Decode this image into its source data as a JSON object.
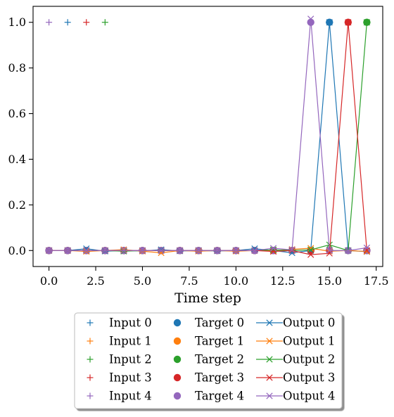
{
  "chart_data": {
    "type": "line",
    "xlabel": "Time step",
    "ylabel": "",
    "title": "",
    "xlim": [
      -0.85,
      17.85
    ],
    "ylim": [
      -0.07,
      1.07
    ],
    "xticks": [
      0,
      2.5,
      5,
      7.5,
      10,
      12.5,
      15,
      17.5
    ],
    "xtick_labels": [
      "0.0",
      "2.5",
      "5.0",
      "7.5",
      "10.0",
      "12.5",
      "15.0",
      "17.5"
    ],
    "yticks": [
      0,
      0.2,
      0.4,
      0.6,
      0.8,
      1.0
    ],
    "ytick_labels": [
      "0.0",
      "0.2",
      "0.4",
      "0.6",
      "0.8",
      "1.0"
    ],
    "grid": false,
    "legend_placement": "below",
    "legend_columns": 3,
    "x": [
      0,
      1,
      2,
      3,
      4,
      5,
      6,
      7,
      8,
      9,
      10,
      11,
      12,
      13,
      14,
      15,
      16,
      17
    ],
    "series": [
      {
        "name": "Input 0",
        "kind": "input",
        "color": "#1f77b4",
        "points": [
          [
            1,
            1.0
          ]
        ]
      },
      {
        "name": "Input 1",
        "kind": "input",
        "color": "#ff7f0e",
        "points": []
      },
      {
        "name": "Input 2",
        "kind": "input",
        "color": "#2ca02c",
        "points": [
          [
            3,
            1.0
          ]
        ]
      },
      {
        "name": "Input 3",
        "kind": "input",
        "color": "#d62728",
        "points": [
          [
            2,
            1.0
          ]
        ]
      },
      {
        "name": "Input 4",
        "kind": "input",
        "color": "#9467bd",
        "points": [
          [
            0,
            1.0
          ]
        ]
      },
      {
        "name": "Target 0",
        "kind": "target",
        "color": "#1f77b4",
        "values": [
          0,
          0,
          0,
          0,
          0,
          0,
          0,
          0,
          0,
          0,
          0,
          0,
          0,
          0,
          0,
          1,
          0,
          0
        ]
      },
      {
        "name": "Target 1",
        "kind": "target",
        "color": "#ff7f0e",
        "values": [
          0,
          0,
          0,
          0,
          0,
          0,
          0,
          0,
          0,
          0,
          0,
          0,
          0,
          0,
          0,
          0,
          0,
          0
        ]
      },
      {
        "name": "Target 2",
        "kind": "target",
        "color": "#2ca02c",
        "values": [
          0,
          0,
          0,
          0,
          0,
          0,
          0,
          0,
          0,
          0,
          0,
          0,
          0,
          0,
          0,
          0,
          0,
          1
        ]
      },
      {
        "name": "Target 3",
        "kind": "target",
        "color": "#d62728",
        "values": [
          0,
          0,
          0,
          0,
          0,
          0,
          0,
          0,
          0,
          0,
          0,
          0,
          0,
          0,
          0,
          0,
          1,
          0
        ]
      },
      {
        "name": "Target 4",
        "kind": "target",
        "color": "#9467bd",
        "values": [
          0,
          0,
          0,
          0,
          0,
          0,
          0,
          0,
          0,
          0,
          0,
          0,
          0,
          0,
          1,
          0,
          0,
          0
        ]
      },
      {
        "name": "Output 0",
        "kind": "output",
        "color": "#1f77b4",
        "values": [
          0.0,
          0.0,
          0.008,
          -0.003,
          0.0,
          -0.002,
          0.004,
          -0.002,
          0.0,
          -0.002,
          0.0,
          0.008,
          0.0,
          -0.01,
          0.0,
          1.0,
          0.0,
          -0.005
        ]
      },
      {
        "name": "Output 1",
        "kind": "output",
        "color": "#ff7f0e",
        "values": [
          0.0,
          0.0,
          -0.004,
          0.0,
          0.004,
          -0.003,
          -0.01,
          0.0,
          -0.003,
          0.0,
          -0.003,
          0.0,
          0.0,
          0.005,
          0.01,
          -0.003,
          0.0,
          -0.004
        ]
      },
      {
        "name": "Output 2",
        "kind": "output",
        "color": "#2ca02c",
        "values": [
          0.0,
          0.0,
          0.0,
          0.0,
          -0.003,
          0.0,
          0.0,
          0.0,
          0.0,
          0.0,
          0.0,
          0.0,
          0.003,
          0.0,
          0.003,
          0.025,
          0.0,
          1.0
        ]
      },
      {
        "name": "Output 3",
        "kind": "output",
        "color": "#d62728",
        "values": [
          0.0,
          0.0,
          0.0,
          0.0,
          0.0,
          0.0,
          0.0,
          0.0,
          0.0,
          0.0,
          0.0,
          0.0,
          -0.004,
          0.0,
          -0.018,
          -0.012,
          1.0,
          0.0
        ]
      },
      {
        "name": "Output 4",
        "kind": "output",
        "color": "#9467bd",
        "values": [
          0.0,
          0.0,
          0.0,
          0.0,
          0.0,
          0.0,
          0.0,
          0.0,
          0.0,
          0.0,
          0.0,
          0.0,
          0.01,
          0.003,
          1.015,
          0.0,
          0.0,
          0.012
        ]
      }
    ]
  }
}
